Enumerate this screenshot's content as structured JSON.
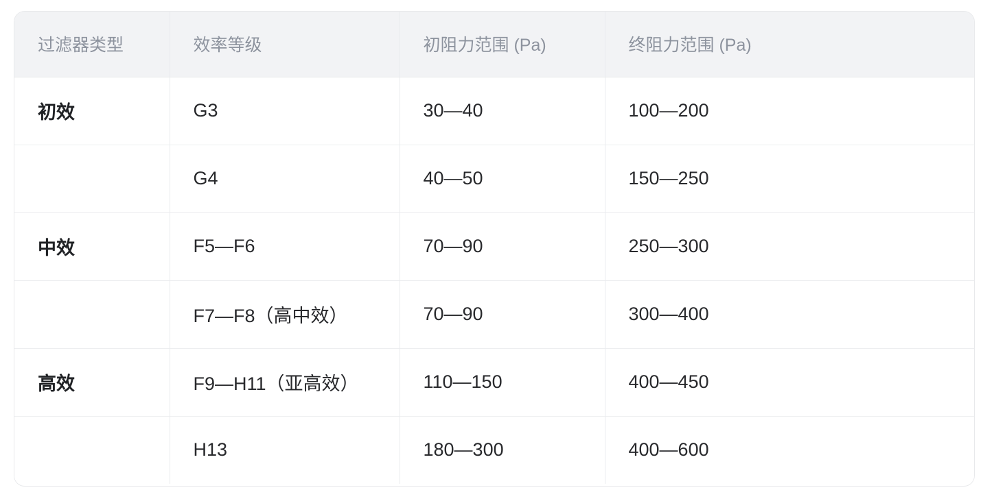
{
  "table": {
    "columns": [
      {
        "label": "过滤器类型"
      },
      {
        "label": "效率等级"
      },
      {
        "label": "初阻力范围 (Pa)"
      },
      {
        "label": "终阻力范围 (Pa)"
      }
    ],
    "rows": [
      [
        "初效",
        "G3",
        "30—40",
        "100—200"
      ],
      [
        "",
        "G4",
        "40—50",
        "150—250"
      ],
      [
        "中效",
        "F5—F6",
        "70—90",
        "250—300"
      ],
      [
        "",
        "F7—F8（高中效）",
        "70—90",
        "300—400"
      ],
      [
        "高效",
        "F9—H11（亚高效）",
        "110—150",
        "400—450"
      ],
      [
        "",
        "H13",
        "180—300",
        "400—600"
      ]
    ]
  },
  "colors": {
    "header_background": "#f2f3f5",
    "header_text": "#8d939e",
    "body_text": "#28292c",
    "border": "#e9ebee"
  }
}
